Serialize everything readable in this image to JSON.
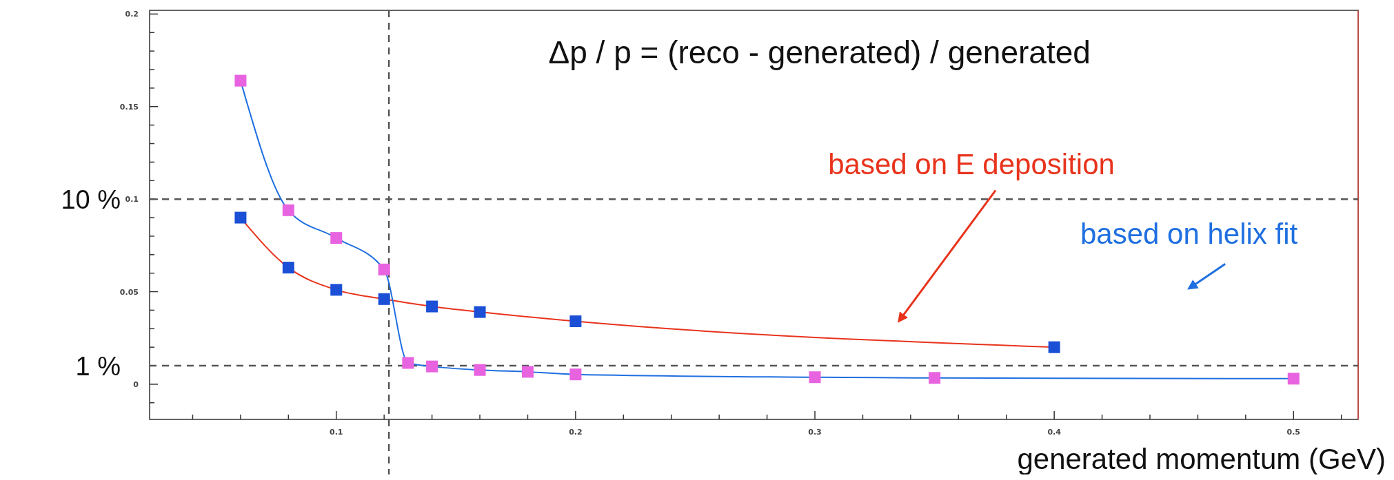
{
  "chart_data": {
    "type": "line",
    "xlabel": "generated momentum (GeV)",
    "annotations": [
      "Δp / p  = (reco - generated) / generated"
    ],
    "xlim": [
      0.022,
      0.527
    ],
    "ylim": [
      -0.019,
      0.202
    ],
    "xticks": [
      {
        "value": 0.04,
        "label": null
      },
      {
        "value": 0.06,
        "label": null
      },
      {
        "value": 0.08,
        "label": null
      },
      0.1,
      {
        "value": 0.12,
        "label": null
      },
      {
        "value": 0.14,
        "label": null
      },
      {
        "value": 0.16,
        "label": null
      },
      {
        "value": 0.18,
        "label": null
      },
      0.2,
      {
        "value": 0.22,
        "label": null
      },
      {
        "value": 0.24,
        "label": null
      },
      {
        "value": 0.26,
        "label": null
      },
      {
        "value": 0.28,
        "label": null
      },
      0.3,
      {
        "value": 0.32,
        "label": null
      },
      {
        "value": 0.34,
        "label": null
      },
      {
        "value": 0.36,
        "label": null
      },
      {
        "value": 0.38,
        "label": null
      },
      0.4,
      {
        "value": 0.42,
        "label": null
      },
      {
        "value": 0.44,
        "label": null
      },
      {
        "value": 0.46,
        "label": null
      },
      {
        "value": 0.48,
        "label": null
      },
      0.5,
      {
        "value": 0.52,
        "label": null
      }
    ],
    "yticks": [
      {
        "value": -0.01,
        "label": null
      },
      0,
      {
        "value": 0.01,
        "label": null
      },
      {
        "value": 0.02,
        "label": null
      },
      {
        "value": 0.03,
        "label": null
      },
      {
        "value": 0.04,
        "label": null
      },
      0.05,
      {
        "value": 0.06,
        "label": null
      },
      {
        "value": 0.07,
        "label": null
      },
      {
        "value": 0.08,
        "label": null
      },
      {
        "value": 0.09,
        "label": null
      },
      0.1,
      {
        "value": 0.11,
        "label": null
      },
      {
        "value": 0.12,
        "label": null
      },
      {
        "value": 0.13,
        "label": null
      },
      {
        "value": 0.14,
        "label": null
      },
      0.15,
      {
        "value": 0.16,
        "label": null
      },
      {
        "value": 0.17,
        "label": null
      },
      {
        "value": 0.18,
        "label": null
      },
      {
        "value": 0.19,
        "label": null
      },
      0.2
    ],
    "marker": "square",
    "line_style": "solid",
    "grid": false,
    "ref_lines": [
      {
        "axis": "y",
        "value": 0.1,
        "label": "10 %",
        "color": "#555555",
        "line_style": "dashed"
      },
      {
        "axis": "y",
        "value": 0.01,
        "label": "1 %",
        "color": "#555555",
        "line_style": "dashed"
      },
      {
        "axis": "x",
        "value": 0.122,
        "color": "#555555",
        "line_style": "dashed"
      }
    ],
    "series": [
      {
        "name": "based on E deposition",
        "color": "#e8331c",
        "colors": [
          "#1a4fd6",
          "#1a4fd6",
          "#1a4fd6",
          "#1a4fd6",
          "#1a4fd6",
          "#1a4fd6",
          "#1a4fd6",
          "#1a4fd6"
        ],
        "x": [
          0.06,
          0.08,
          0.1,
          0.12,
          0.14,
          0.16,
          0.2,
          0.4
        ],
        "values": [
          0.09,
          0.063,
          0.051,
          0.046,
          0.042,
          0.039,
          0.034,
          0.02
        ]
      },
      {
        "name": "based on helix fit",
        "color": "#1f6fe0",
        "colors": [
          "#e763e0",
          "#e763e0",
          "#e763e0",
          "#e763e0",
          "#e763e0",
          "#e763e0",
          "#e763e0",
          "#e763e0",
          "#e763e0",
          "#e763e0",
          "#e763e0",
          "#e763e0"
        ],
        "x": [
          0.06,
          0.08,
          0.1,
          0.12,
          0.13,
          0.14,
          0.16,
          0.18,
          0.2,
          0.3,
          0.35,
          0.5
        ],
        "values": [
          0.164,
          0.094,
          0.079,
          0.062,
          0.0115,
          0.0096,
          0.0077,
          0.0067,
          0.0053,
          0.0038,
          0.0034,
          0.003
        ]
      }
    ]
  }
}
